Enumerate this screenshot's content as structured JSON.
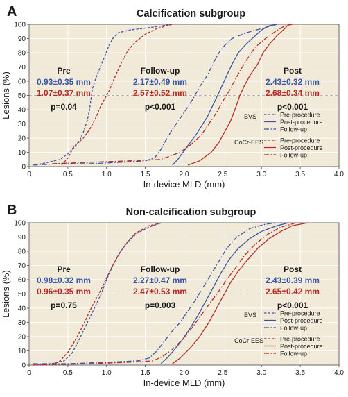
{
  "colors": {
    "bvs": "#3a55a6",
    "cocr": "#b52a25",
    "plot_bg": "#f1ead9",
    "grid": "#ffffff",
    "ref50": "#b9b4a8"
  },
  "legend": {
    "group1": "BVS",
    "group2": "CoCr-EES",
    "items": [
      "Pre-procedure",
      "Post-procedure",
      "Follow-up"
    ]
  },
  "chart_data": [
    {
      "type": "line",
      "panel_letter": "A",
      "title": "Calcification subgroup",
      "xlabel": "In-device MLD (mm)",
      "ylabel": "Lesions (%)",
      "xlim": [
        0,
        4.0
      ],
      "ylim": [
        0,
        100
      ],
      "x_ticks": [
        "0",
        "0.5",
        "1.0",
        "1.5",
        "2.0",
        "2.5",
        "3.0",
        "3.5",
        "4.0"
      ],
      "y_ticks": [
        "0",
        "10",
        "20",
        "30",
        "40",
        "50",
        "60",
        "70",
        "80",
        "90",
        "100"
      ],
      "reference_line_y": 50,
      "legend_position": "right",
      "annotations": [
        {
          "key": "pre",
          "head": "Pre",
          "bvs": "0.93±0.35 mm",
          "cocr": "1.07±0.37 mm",
          "p": "p=0.04"
        },
        {
          "key": "fu",
          "head": "Follow-up",
          "bvs": "2.17±0.49 mm",
          "cocr": "2.57±0.52 mm",
          "p": "p<0.001"
        },
        {
          "key": "post",
          "head": "Post",
          "bvs": "2.43±0.32 mm",
          "cocr": "2.68±0.34 mm",
          "p": "p<0.001"
        }
      ],
      "series": [
        {
          "group": "BVS",
          "phase": "Pre-procedure",
          "points": [
            [
              0.08,
              1
            ],
            [
              0.25,
              3
            ],
            [
              0.4,
              5
            ],
            [
              0.5,
              9
            ],
            [
              0.58,
              14
            ],
            [
              0.65,
              18
            ],
            [
              0.7,
              24
            ],
            [
              0.75,
              32
            ],
            [
              0.78,
              40
            ],
            [
              0.8,
              48
            ],
            [
              0.82,
              55
            ],
            [
              0.86,
              62
            ],
            [
              0.92,
              70
            ],
            [
              0.98,
              78
            ],
            [
              1.03,
              85
            ],
            [
              1.08,
              90
            ],
            [
              1.15,
              94
            ],
            [
              1.3,
              96
            ],
            [
              1.6,
              98
            ],
            [
              1.85,
              100
            ]
          ]
        },
        {
          "group": "BVS",
          "phase": "Post-procedure",
          "points": [
            [
              1.85,
              1
            ],
            [
              1.92,
              5
            ],
            [
              2.0,
              11
            ],
            [
              2.08,
              17
            ],
            [
              2.15,
              22
            ],
            [
              2.22,
              28
            ],
            [
              2.3,
              35
            ],
            [
              2.38,
              44
            ],
            [
              2.45,
              52
            ],
            [
              2.5,
              58
            ],
            [
              2.55,
              64
            ],
            [
              2.62,
              72
            ],
            [
              2.7,
              80
            ],
            [
              2.8,
              86
            ],
            [
              2.9,
              91
            ],
            [
              3.0,
              96
            ],
            [
              3.1,
              99
            ],
            [
              3.2,
              100
            ]
          ]
        },
        {
          "group": "BVS",
          "phase": "Follow-up",
          "points": [
            [
              0.05,
              1
            ],
            [
              0.4,
              2
            ],
            [
              0.8,
              2
            ],
            [
              1.2,
              3
            ],
            [
              1.5,
              4
            ],
            [
              1.62,
              6
            ],
            [
              1.7,
              12
            ],
            [
              1.78,
              20
            ],
            [
              1.86,
              27
            ],
            [
              1.95,
              34
            ],
            [
              2.05,
              42
            ],
            [
              2.12,
              48
            ],
            [
              2.2,
              56
            ],
            [
              2.3,
              64
            ],
            [
              2.38,
              73
            ],
            [
              2.45,
              80
            ],
            [
              2.52,
              85
            ],
            [
              2.62,
              90
            ],
            [
              2.8,
              94
            ],
            [
              3.0,
              97
            ],
            [
              3.2,
              100
            ]
          ]
        },
        {
          "group": "CoCr-EES",
          "phase": "Pre-procedure",
          "points": [
            [
              0.42,
              1
            ],
            [
              0.5,
              6
            ],
            [
              0.56,
              12
            ],
            [
              0.62,
              16
            ],
            [
              0.7,
              20
            ],
            [
              0.78,
              26
            ],
            [
              0.85,
              33
            ],
            [
              0.92,
              42
            ],
            [
              0.98,
              48
            ],
            [
              1.04,
              54
            ],
            [
              1.1,
              62
            ],
            [
              1.15,
              68
            ],
            [
              1.2,
              74
            ],
            [
              1.28,
              82
            ],
            [
              1.38,
              88
            ],
            [
              1.5,
              93
            ],
            [
              1.65,
              97
            ],
            [
              1.85,
              100
            ]
          ]
        },
        {
          "group": "CoCr-EES",
          "phase": "Post-procedure",
          "points": [
            [
              2.05,
              1
            ],
            [
              2.2,
              4
            ],
            [
              2.35,
              10
            ],
            [
              2.45,
              17
            ],
            [
              2.52,
              24
            ],
            [
              2.6,
              32
            ],
            [
              2.67,
              42
            ],
            [
              2.72,
              50
            ],
            [
              2.78,
              57
            ],
            [
              2.85,
              64
            ],
            [
              2.95,
              72
            ],
            [
              3.02,
              80
            ],
            [
              3.1,
              86
            ],
            [
              3.2,
              92
            ],
            [
              3.3,
              97
            ],
            [
              3.35,
              100
            ]
          ]
        },
        {
          "group": "CoCr-EES",
          "phase": "Follow-up",
          "points": [
            [
              0.3,
              2
            ],
            [
              0.8,
              3
            ],
            [
              1.3,
              4
            ],
            [
              1.7,
              5
            ],
            [
              1.8,
              7
            ],
            [
              1.95,
              10
            ],
            [
              2.1,
              16
            ],
            [
              2.22,
              22
            ],
            [
              2.32,
              30
            ],
            [
              2.42,
              38
            ],
            [
              2.5,
              46
            ],
            [
              2.57,
              52
            ],
            [
              2.65,
              60
            ],
            [
              2.73,
              68
            ],
            [
              2.82,
              76
            ],
            [
              2.92,
              84
            ],
            [
              3.05,
              90
            ],
            [
              3.18,
              95
            ],
            [
              3.3,
              99
            ],
            [
              3.4,
              100
            ]
          ]
        }
      ]
    },
    {
      "type": "line",
      "panel_letter": "B",
      "title": "Non-calcification subgroup",
      "xlabel": "In-device MLD (mm)",
      "ylabel": "Lesions (%)",
      "xlim": [
        0,
        4.0
      ],
      "ylim": [
        0,
        100
      ],
      "x_ticks": [
        "0",
        "0.5",
        "1.0",
        "1.5",
        "2.0",
        "2.5",
        "3.0",
        "3.5",
        "4.0"
      ],
      "y_ticks": [
        "0",
        "10",
        "20",
        "30",
        "40",
        "50",
        "60",
        "70",
        "80",
        "90",
        "100"
      ],
      "reference_line_y": 50,
      "legend_position": "right",
      "annotations": [
        {
          "key": "pre",
          "head": "Pre",
          "bvs": "0.98±0.32 mm",
          "cocr": "0.96±0.35 mm",
          "p": "p=0.75"
        },
        {
          "key": "fu",
          "head": "Follow-up",
          "bvs": "2.27±0.47 mm",
          "cocr": "2.47±0.53 mm",
          "p": "p=0.003"
        },
        {
          "key": "post",
          "head": "Post",
          "bvs": "2.43±0.39 mm",
          "cocr": "2.65±0.42 mm",
          "p": "p<0.001"
        }
      ],
      "series": [
        {
          "group": "BVS",
          "phase": "Pre-procedure",
          "points": [
            [
              0.05,
              0
            ],
            [
              0.3,
              1
            ],
            [
              0.45,
              3
            ],
            [
              0.55,
              8
            ],
            [
              0.62,
              15
            ],
            [
              0.7,
              24
            ],
            [
              0.78,
              33
            ],
            [
              0.86,
              42
            ],
            [
              0.93,
              50
            ],
            [
              1.0,
              60
            ],
            [
              1.08,
              70
            ],
            [
              1.17,
              79
            ],
            [
              1.28,
              87
            ],
            [
              1.4,
              93
            ],
            [
              1.55,
              97
            ],
            [
              1.7,
              100
            ]
          ]
        },
        {
          "group": "BVS",
          "phase": "Post-procedure",
          "points": [
            [
              1.7,
              1
            ],
            [
              1.78,
              5
            ],
            [
              1.88,
              11
            ],
            [
              1.98,
              18
            ],
            [
              2.08,
              26
            ],
            [
              2.18,
              35
            ],
            [
              2.28,
              45
            ],
            [
              2.38,
              55
            ],
            [
              2.48,
              65
            ],
            [
              2.58,
              74
            ],
            [
              2.7,
              82
            ],
            [
              2.85,
              89
            ],
            [
              3.0,
              94
            ],
            [
              3.2,
              98
            ],
            [
              3.35,
              100
            ]
          ]
        },
        {
          "group": "BVS",
          "phase": "Follow-up",
          "points": [
            [
              0.05,
              1
            ],
            [
              0.5,
              1
            ],
            [
              1.0,
              2
            ],
            [
              1.4,
              3
            ],
            [
              1.55,
              5
            ],
            [
              1.65,
              10
            ],
            [
              1.75,
              17
            ],
            [
              1.85,
              24
            ],
            [
              1.95,
              30
            ],
            [
              2.05,
              38
            ],
            [
              2.15,
              46
            ],
            [
              2.25,
              55
            ],
            [
              2.35,
              64
            ],
            [
              2.45,
              73
            ],
            [
              2.55,
              82
            ],
            [
              2.68,
              90
            ],
            [
              2.85,
              96
            ],
            [
              3.05,
              99
            ],
            [
              3.2,
              100
            ]
          ]
        },
        {
          "group": "CoCr-EES",
          "phase": "Pre-procedure",
          "points": [
            [
              0.3,
              0
            ],
            [
              0.4,
              3
            ],
            [
              0.5,
              9
            ],
            [
              0.58,
              16
            ],
            [
              0.66,
              24
            ],
            [
              0.74,
              33
            ],
            [
              0.82,
              42
            ],
            [
              0.9,
              50
            ],
            [
              0.98,
              59
            ],
            [
              1.06,
              68
            ],
            [
              1.15,
              77
            ],
            [
              1.26,
              86
            ],
            [
              1.38,
              93
            ],
            [
              1.55,
              98
            ],
            [
              1.72,
              100
            ]
          ]
        },
        {
          "group": "CoCr-EES",
          "phase": "Post-procedure",
          "points": [
            [
              1.85,
              1
            ],
            [
              1.95,
              5
            ],
            [
              2.08,
              12
            ],
            [
              2.2,
              20
            ],
            [
              2.32,
              30
            ],
            [
              2.42,
              40
            ],
            [
              2.52,
              50
            ],
            [
              2.6,
              58
            ],
            [
              2.7,
              66
            ],
            [
              2.82,
              74
            ],
            [
              2.95,
              82
            ],
            [
              3.1,
              89
            ],
            [
              3.25,
              94
            ],
            [
              3.4,
              98
            ],
            [
              3.6,
              100
            ]
          ]
        },
        {
          "group": "CoCr-EES",
          "phase": "Follow-up",
          "points": [
            [
              0.05,
              0
            ],
            [
              0.8,
              1
            ],
            [
              1.3,
              2
            ],
            [
              1.6,
              3
            ],
            [
              1.72,
              6
            ],
            [
              1.85,
              11
            ],
            [
              1.98,
              18
            ],
            [
              2.1,
              26
            ],
            [
              2.22,
              35
            ],
            [
              2.34,
              44
            ],
            [
              2.45,
              52
            ],
            [
              2.55,
              60
            ],
            [
              2.66,
              68
            ],
            [
              2.78,
              77
            ],
            [
              2.92,
              85
            ],
            [
              3.08,
              92
            ],
            [
              3.25,
              97
            ],
            [
              3.45,
              100
            ]
          ]
        }
      ]
    }
  ]
}
